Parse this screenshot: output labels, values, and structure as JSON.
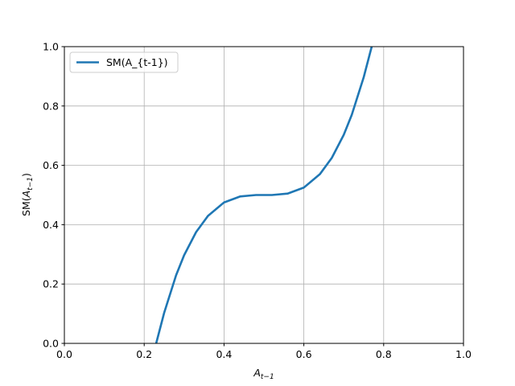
{
  "chart_data": {
    "type": "line",
    "xlabel": {
      "base": "A",
      "sub": "t−1"
    },
    "ylabel": {
      "prefix": "SM(",
      "base": "A",
      "sub": "t−1",
      "suffix": ")"
    },
    "x": [
      0.23,
      0.25,
      0.28,
      0.3,
      0.33,
      0.36,
      0.4,
      0.44,
      0.48,
      0.5,
      0.52,
      0.56,
      0.6,
      0.64,
      0.67,
      0.7,
      0.72,
      0.75,
      0.77
    ],
    "series": [
      {
        "name": "SM(A_{t-1})",
        "color": "#1f77b4",
        "values": [
          0.0,
          0.103,
          0.23,
          0.297,
          0.375,
          0.43,
          0.475,
          0.495,
          0.5,
          0.5,
          0.5,
          0.505,
          0.525,
          0.57,
          0.625,
          0.703,
          0.77,
          0.897,
          1.0
        ]
      }
    ],
    "xlim": [
      0,
      1
    ],
    "ylim": [
      0,
      1
    ],
    "xticks": [
      {
        "value": 0,
        "label": "0.0"
      },
      0.2,
      0.4,
      0.6,
      0.8,
      {
        "value": 1,
        "label": "1.0"
      }
    ],
    "yticks": [
      {
        "value": 0,
        "label": "0.0"
      },
      0.2,
      0.4,
      0.6,
      0.8,
      {
        "value": 1,
        "label": "1.0"
      }
    ],
    "grid": true,
    "legend": "upper left"
  }
}
